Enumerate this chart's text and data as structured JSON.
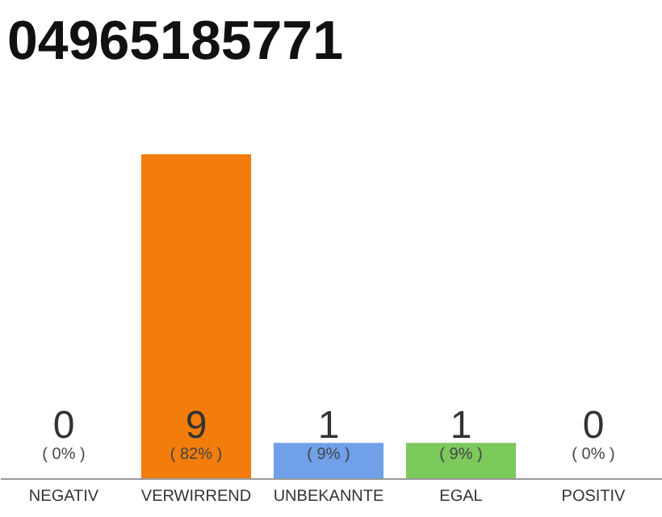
{
  "chart_data": {
    "type": "bar",
    "title": "04965185771",
    "categories": [
      "NEGATIV",
      "VERWIRREND",
      "UNBEKANNTE",
      "EGAL",
      "POSITIV"
    ],
    "values": [
      0,
      9,
      1,
      1,
      0
    ],
    "colors": [
      "#7cc95c",
      "#f27c0c",
      "#6fa0e8",
      "#7cc95c",
      "#7cc95c"
    ],
    "data_labels": true,
    "annotations": [
      "( 0% )",
      "( 82% )",
      "( 9% )",
      "( 9% )",
      "( 0% )"
    ]
  }
}
